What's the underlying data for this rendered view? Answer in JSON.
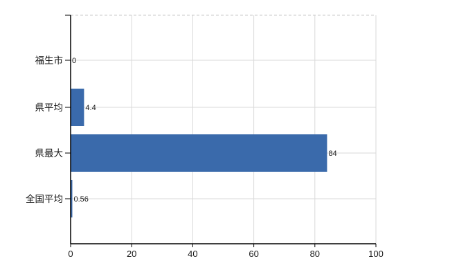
{
  "chart_data": {
    "type": "bar",
    "orientation": "horizontal",
    "title": "",
    "xlabel": "",
    "ylabel": "",
    "categories": [
      "福生市",
      "県平均",
      "県最大",
      "全国平均"
    ],
    "values": [
      0,
      4.4,
      84,
      0.56
    ],
    "value_labels": [
      "0",
      "4.4",
      "84",
      "0.56"
    ],
    "x_ticks": [
      0,
      20,
      40,
      60,
      80,
      100
    ],
    "x_tick_labels": [
      "0",
      "20",
      "40",
      "60",
      "80",
      "100"
    ],
    "xlim": [
      0,
      100
    ],
    "grid": true,
    "legend": "none",
    "colors": {
      "bar": "#3a6aab",
      "axis": "#000000",
      "gridline": "#d9d9d9",
      "top_border": "#c9c9c9",
      "text": "#1a1a1a"
    }
  }
}
